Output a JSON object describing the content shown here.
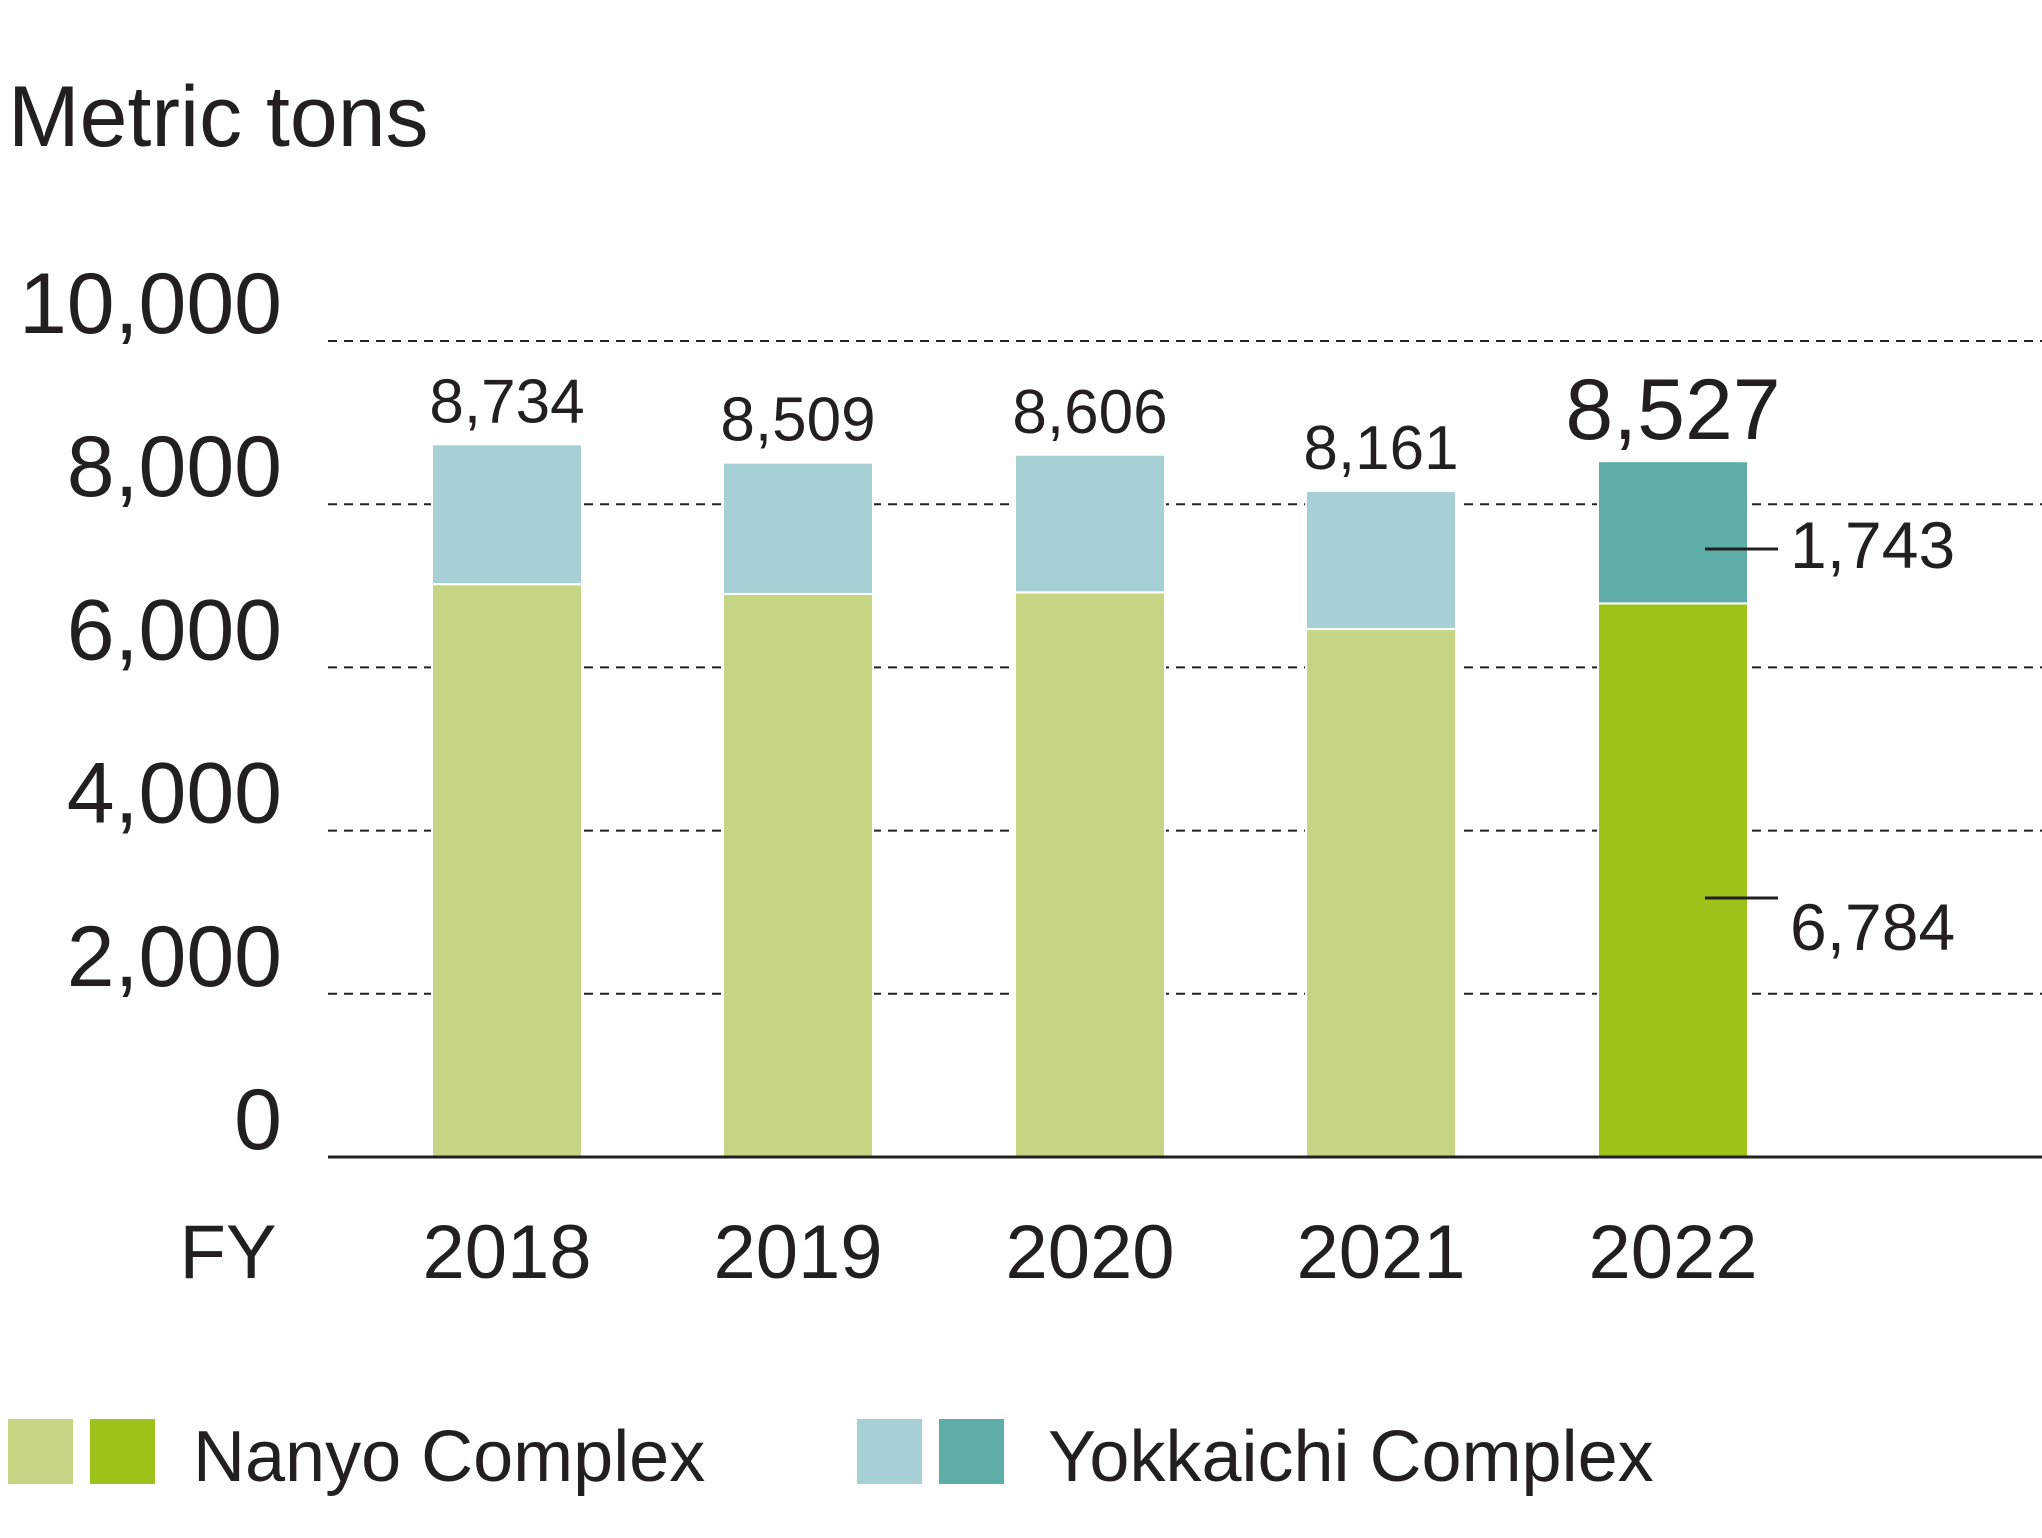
{
  "chart_data": {
    "type": "bar",
    "stacked": true,
    "unit_label": "Metric tons",
    "xlabel": "FY",
    "categories": [
      "2018",
      "2019",
      "2020",
      "2021",
      "2022"
    ],
    "totals": [
      "8,734",
      "8,509",
      "8,606",
      "8,161",
      "8,527"
    ],
    "series": [
      {
        "name": "Nanyo Complex",
        "values": [
          7020,
          6900,
          6920,
          6470,
          6784
        ],
        "colors": [
          "#c6d583",
          "#c6d583",
          "#c6d583",
          "#c6d583",
          "#9dc21a"
        ]
      },
      {
        "name": "Yokkaichi Complex",
        "values": [
          1714,
          1609,
          1686,
          1691,
          1743
        ],
        "colors": [
          "#a6d0d3",
          "#a6d0d3",
          "#a6d0d3",
          "#a6d0d3",
          "#5fada7"
        ]
      }
    ],
    "segment_labels_2022": {
      "yokkaichi": "1,743",
      "nanyo": "6,784"
    },
    "yticks": [
      "0",
      "2,000",
      "4,000",
      "6,000",
      "8,000",
      "10,000"
    ],
    "ylim": [
      0,
      10000
    ],
    "grid": true,
    "grid_style": "dashed",
    "legend_position": "bottom",
    "legend_swatch_colors": {
      "nanyo": [
        "#c6d583",
        "#9dc21a"
      ],
      "yokkaichi": [
        "#a6d0d3",
        "#5fada7"
      ]
    }
  }
}
